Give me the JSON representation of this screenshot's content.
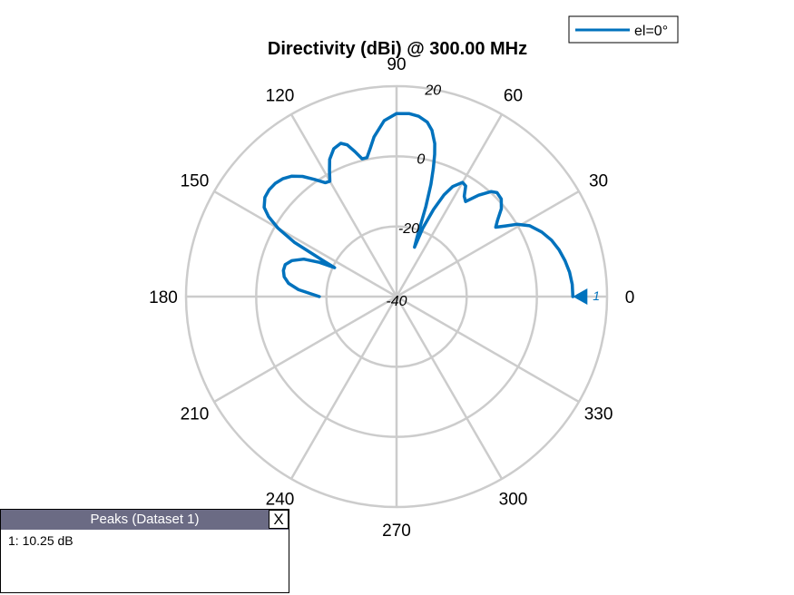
{
  "chart_data": {
    "type": "polar",
    "title": "Directivity (dBi) @ 300.00 MHz",
    "angle_ticks": [
      "0",
      "30",
      "60",
      "90",
      "120",
      "150",
      "180",
      "210",
      "240",
      "270",
      "300",
      "330"
    ],
    "angle_tick_values": [
      0,
      30,
      60,
      90,
      120,
      150,
      180,
      210,
      240,
      270,
      300,
      330
    ],
    "magnitude_ticks": [
      "-40",
      "-20",
      "0",
      "20"
    ],
    "magnitude_tick_values": [
      -40,
      -20,
      0,
      20
    ],
    "rlim": [
      -40,
      20
    ],
    "grid": true,
    "legend_position": "top-right",
    "series": [
      {
        "name": "el=0°",
        "color": "#0072BD",
        "angles_deg": [
          0,
          4,
          8,
          12,
          16,
          20,
          24,
          28,
          31,
          33,
          35,
          37,
          40,
          43,
          46,
          48,
          51,
          54,
          56,
          58,
          60,
          63,
          65,
          67,
          69,
          70,
          71,
          72,
          73,
          74,
          75,
          76,
          78,
          80,
          83,
          86,
          90,
          94,
          98,
          100,
          102,
          104,
          106,
          108,
          110,
          113,
          116,
          118,
          120,
          122,
          125,
          128,
          131,
          134,
          137,
          140,
          143,
          146,
          148,
          150,
          152,
          154,
          155,
          156,
          158,
          161,
          164,
          167,
          170,
          173,
          176,
          180
        ],
        "values_db": [
          10.25,
          10.2,
          9.8,
          9.1,
          8.2,
          7.0,
          5.3,
          3.0,
          0.0,
          -3.0,
          -5.5,
          -4.0,
          -1.0,
          0.8,
          1.2,
          0.3,
          -2.8,
          -6.5,
          -5.5,
          -2.8,
          -2.4,
          -4.8,
          -8.0,
          -13.0,
          -19.0,
          -25.0,
          -22.0,
          -13.0,
          -6.5,
          -2.0,
          2.0,
          5.0,
          8.5,
          10.5,
          11.8,
          12.3,
          12.2,
          10.3,
          6.0,
          3.0,
          0.5,
          0.5,
          3.0,
          5.5,
          6.5,
          5.8,
          3.5,
          0.7,
          -2.0,
          -1.7,
          0.8,
          3.5,
          5.5,
          6.7,
          7.3,
          7.4,
          7.0,
          5.5,
          3.0,
          -1.0,
          -7.0,
          -17.0,
          -20.5,
          -16.0,
          -11.5,
          -8.5,
          -7.0,
          -6.9,
          -7.5,
          -9.0,
          -12.0,
          -18.0
        ]
      }
    ],
    "peak_marker": {
      "angle_deg": 0,
      "label": "1"
    }
  },
  "peaks_panel": {
    "title": "Peaks (Dataset 1)",
    "close_label": "X",
    "entries": [
      "1: 10.25 dB"
    ]
  }
}
